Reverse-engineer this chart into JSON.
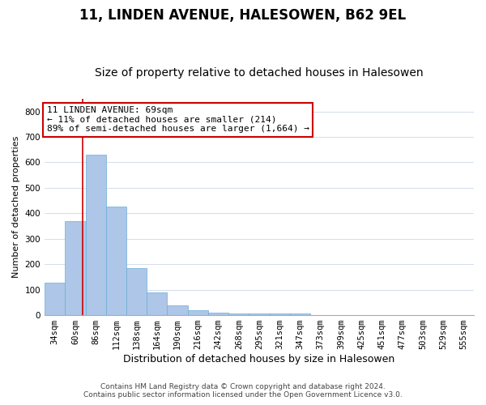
{
  "title": "11, LINDEN AVENUE, HALESOWEN, B62 9EL",
  "subtitle": "Size of property relative to detached houses in Halesowen",
  "xlabel": "Distribution of detached houses by size in Halesowen",
  "ylabel": "Number of detached properties",
  "categories": [
    "34sqm",
    "60sqm",
    "86sqm",
    "112sqm",
    "138sqm",
    "164sqm",
    "190sqm",
    "216sqm",
    "242sqm",
    "268sqm",
    "295sqm",
    "321sqm",
    "347sqm",
    "373sqm",
    "399sqm",
    "425sqm",
    "451sqm",
    "477sqm",
    "503sqm",
    "529sqm",
    "555sqm"
  ],
  "bar_values": [
    128,
    370,
    630,
    425,
    185,
    88,
    37,
    18,
    10,
    7,
    7,
    7,
    7,
    0,
    0,
    0,
    0,
    0,
    0,
    0,
    0
  ],
  "bar_color": "#aec6e8",
  "bar_edge_color": "#6aaed6",
  "red_line_x": 1.35,
  "annotation_lines": [
    "11 LINDEN AVENUE: 69sqm",
    "← 11% of detached houses are smaller (214)",
    "89% of semi-detached houses are larger (1,664) →"
  ],
  "annotation_box_color": "#ffffff",
  "annotation_box_edge_color": "#cc0000",
  "red_line_color": "#cc0000",
  "ylim": [
    0,
    850
  ],
  "yticks": [
    0,
    100,
    200,
    300,
    400,
    500,
    600,
    700,
    800
  ],
  "grid_color": "#cdd8ea",
  "footer1": "Contains HM Land Registry data © Crown copyright and database right 2024.",
  "footer2": "Contains public sector information licensed under the Open Government Licence v3.0.",
  "title_fontsize": 12,
  "subtitle_fontsize": 10,
  "xlabel_fontsize": 9,
  "ylabel_fontsize": 8,
  "tick_fontsize": 7.5,
  "annotation_fontsize": 8,
  "footer_fontsize": 6.5
}
